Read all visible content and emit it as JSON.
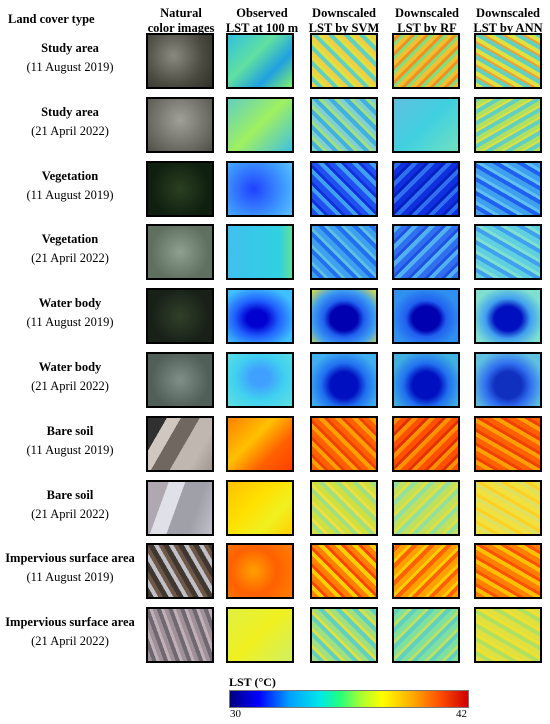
{
  "headers": {
    "land_cover": "Land cover type",
    "natural": [
      "Natural",
      "color images"
    ],
    "observed": [
      "Observed",
      "LST at 100 m"
    ],
    "svm": [
      "Downscaled",
      "LST by SVM"
    ],
    "rf": [
      "Downscaled",
      "LST by RF"
    ],
    "ann": [
      "Downscaled",
      "LST by ANN"
    ]
  },
  "rows": [
    {
      "type": "Study area",
      "date": "(11 August 2019)"
    },
    {
      "type": "Study area",
      "date": "(21 April 2022)"
    },
    {
      "type": "Vegetation",
      "date": "(11 August 2019)"
    },
    {
      "type": "Vegetation",
      "date": "(21 April 2022)"
    },
    {
      "type": "Water body",
      "date": "(11 August 2019)"
    },
    {
      "type": "Water body",
      "date": "(21 April 2022)"
    },
    {
      "type": "Bare soil",
      "date": "(11 August 2019)"
    },
    {
      "type": "Bare soil",
      "date": "(21 April 2022)"
    },
    {
      "type": "Impervious surface area",
      "date": "(11 August 2019)"
    },
    {
      "type": "Impervious surface area",
      "date": "(21 April 2022)"
    }
  ],
  "colorbar": {
    "title": "LST (°C)",
    "min": "30",
    "max": "42"
  }
}
